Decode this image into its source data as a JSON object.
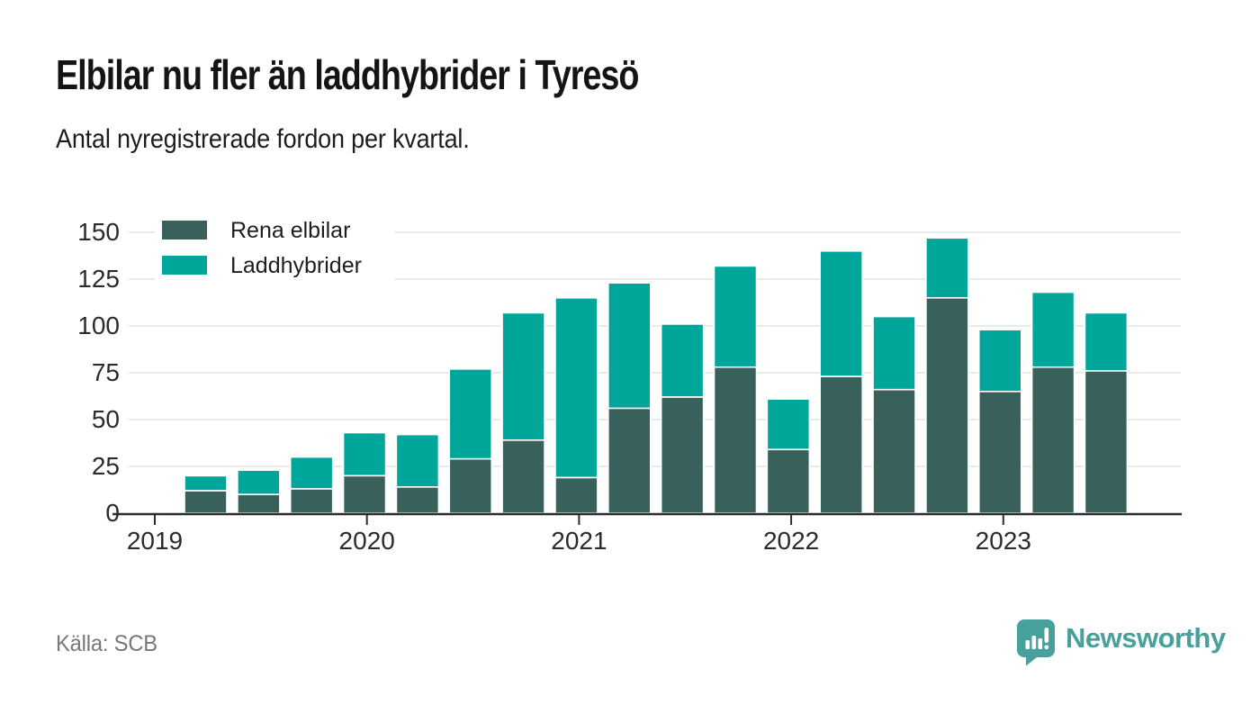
{
  "header": {
    "title": "Elbilar nu fler än laddhybrider i Tyresö",
    "subtitle": "Antal nyregistrerade fordon per kvartal."
  },
  "footer": {
    "source": "Källa: SCB",
    "brand": "Newsworthy"
  },
  "colors": {
    "elbilar": "#38615c",
    "laddhybrider": "#00a69a",
    "axis": "#2d2d2d",
    "grid": "#e3e3e3",
    "tick_text": "#2b2b2b",
    "brand": "#47a09b",
    "legend_text": "#1d1d1d",
    "source_text": "#777777"
  },
  "chart_data": {
    "type": "bar",
    "stacked": true,
    "title": "Elbilar nu fler än laddhybrider i Tyresö",
    "subtitle": "Antal nyregistrerade fordon per kvartal.",
    "xlabel": "",
    "ylabel": "",
    "ylim": [
      0,
      150
    ],
    "yticks": [
      0,
      25,
      50,
      75,
      100,
      125,
      150
    ],
    "grid": true,
    "legend_position": "top-left",
    "categories": [
      "2019 K2",
      "2019 K3",
      "2019 K4",
      "2020 K1",
      "2020 K2",
      "2020 K3",
      "2020 K4",
      "2021 K1",
      "2021 K2",
      "2021 K3",
      "2021 K4",
      "2022 K1",
      "2022 K2",
      "2022 K3",
      "2022 K4",
      "2023 K1",
      "2023 K2",
      "2023 K3"
    ],
    "x_year_labels": [
      "2019",
      "2020",
      "2021",
      "2022",
      "2023"
    ],
    "series": [
      {
        "name": "Rena elbilar",
        "color": "#38615c",
        "values": [
          12,
          10,
          13,
          20,
          14,
          29,
          39,
          19,
          56,
          62,
          78,
          34,
          73,
          66,
          115,
          65,
          78,
          76
        ]
      },
      {
        "name": "Laddhybrider",
        "color": "#00a69a",
        "values": [
          8,
          13,
          17,
          23,
          28,
          48,
          68,
          96,
          67,
          39,
          54,
          27,
          67,
          39,
          32,
          33,
          40,
          31
        ]
      }
    ],
    "stacked_totals": [
      20,
      23,
      30,
      43,
      42,
      77,
      107,
      115,
      123,
      101,
      132,
      61,
      140,
      105,
      147,
      98,
      118,
      107
    ]
  }
}
